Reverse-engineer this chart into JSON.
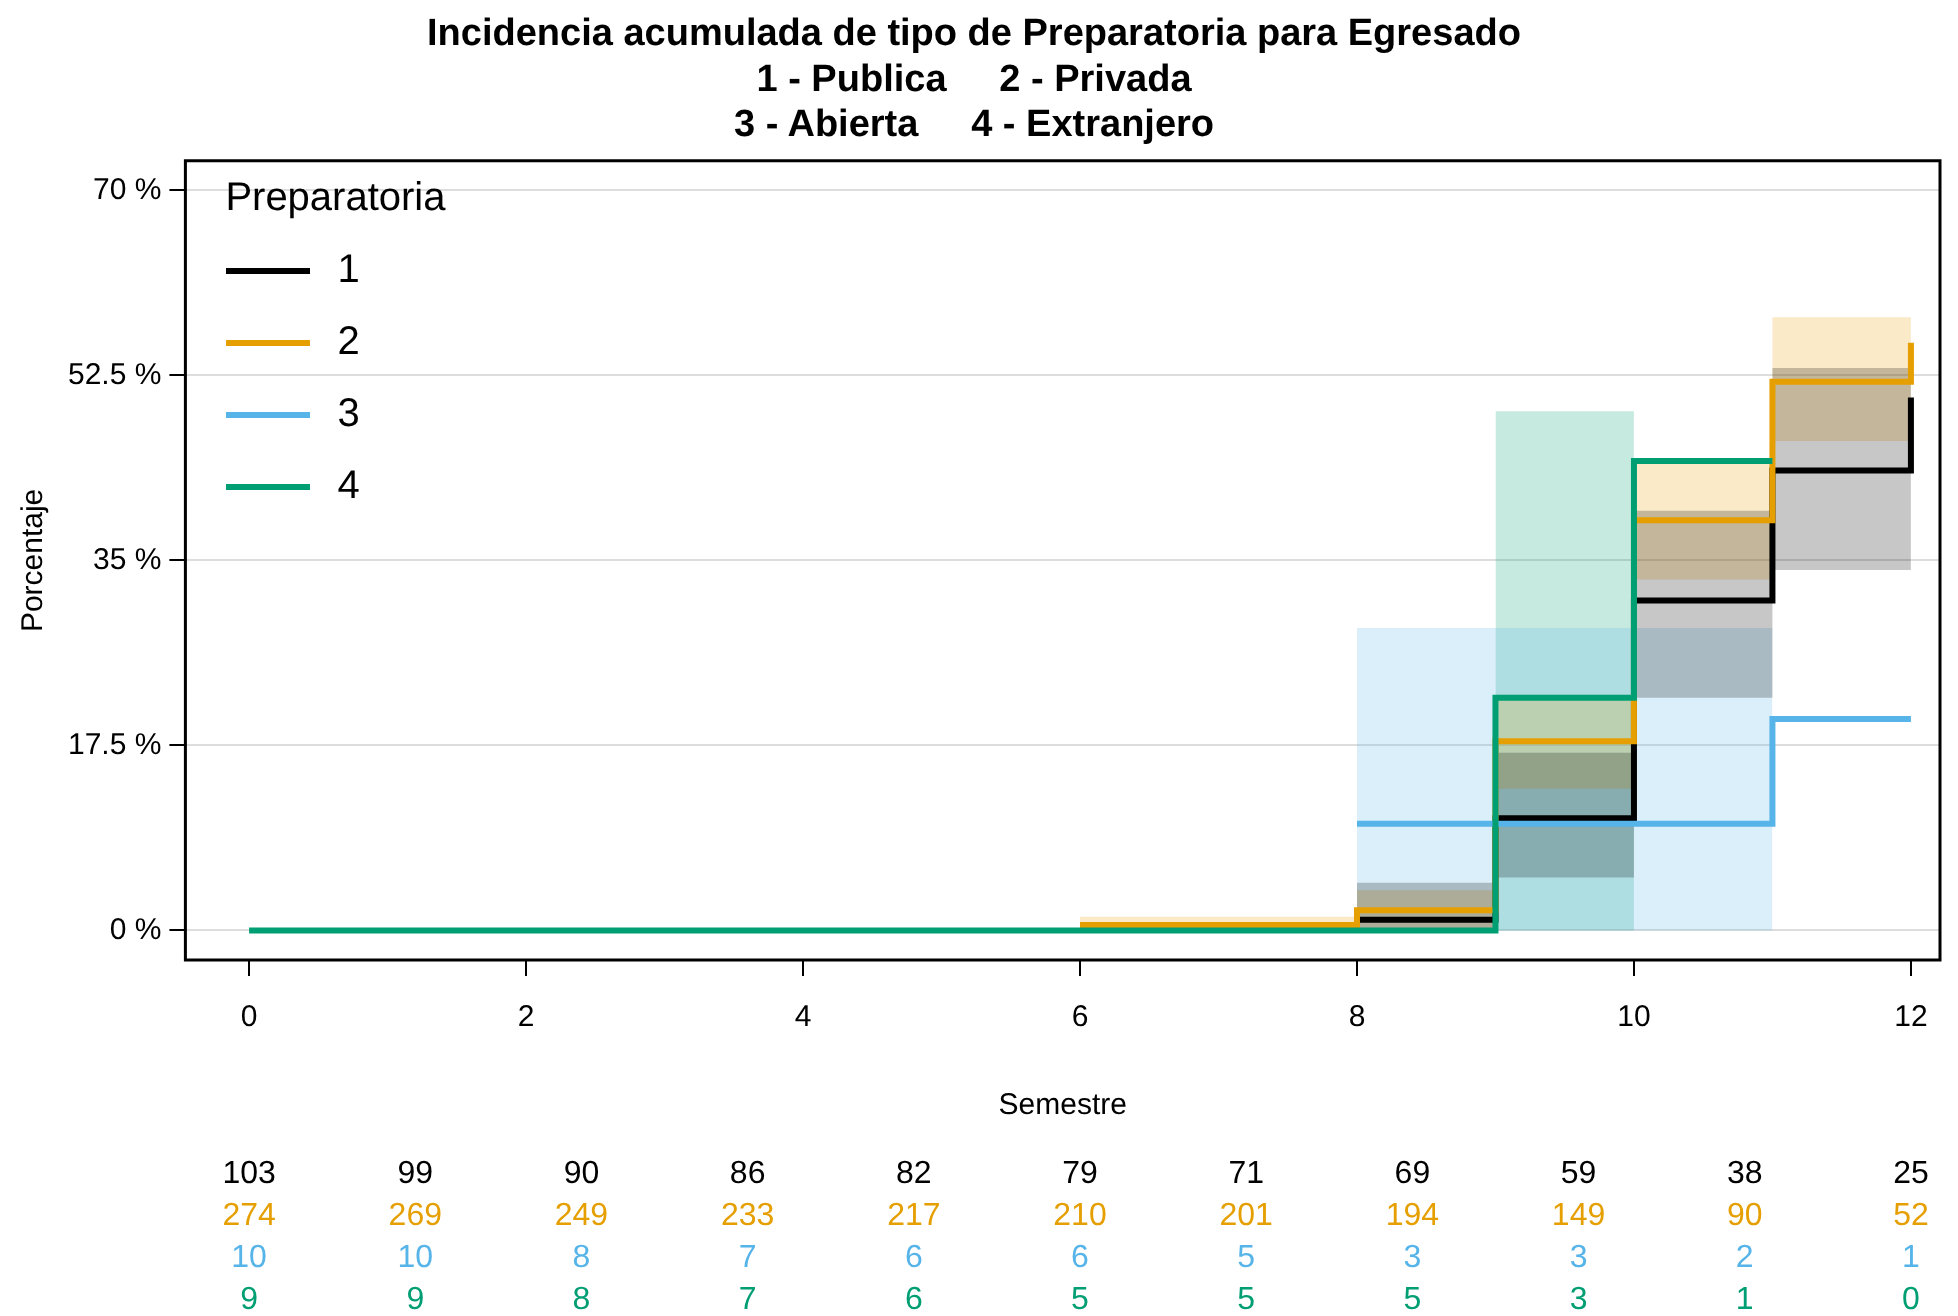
{
  "chart_data": {
    "type": "step",
    "title": "Incidencia acumulada de tipo de Preparatoria para Egresado",
    "subtitle": "1 - Publica     2 - Privada\n3 - Abierta     4 - Extranjero",
    "xlabel": "Semestre",
    "ylabel": "Porcentaje",
    "legend_title": "Preparatoria",
    "xlim": [
      -0.46,
      12.21
    ],
    "xticks": [
      0,
      2,
      4,
      6,
      8,
      10,
      12
    ],
    "ylim": [
      -2.8,
      72.8
    ],
    "yticks": [
      {
        "value": 0,
        "label": "0 %"
      },
      {
        "value": 17.5,
        "label": "17.5 %"
      },
      {
        "value": 35,
        "label": "35 %"
      },
      {
        "value": 52.5,
        "label": "52.5 %"
      },
      {
        "value": 70,
        "label": "70 %"
      }
    ],
    "grid": "y",
    "legend": "top left",
    "series": [
      {
        "name": "1",
        "color": "#000000",
        "x": [
          8,
          9,
          10,
          11,
          12
        ],
        "values": [
          1.0,
          10.6,
          31.2,
          43.5,
          50.4
        ],
        "lower": [
          0,
          5.0,
          22.0,
          34.1,
          34.1
        ],
        "upper": [
          4.5,
          16.8,
          39.7,
          53.2,
          53.2
        ]
      },
      {
        "name": "2",
        "color": "#e69f00",
        "x": [
          6,
          7,
          8,
          9,
          10,
          11,
          12
        ],
        "values": [
          0.5,
          0.5,
          1.9,
          17.9,
          38.8,
          51.9,
          55.6
        ],
        "lower": [
          0,
          0,
          0.2,
          13.4,
          33.2,
          46.3,
          46.3
        ],
        "upper": [
          1.3,
          1.3,
          3.8,
          22.0,
          44.2,
          58.0,
          58.0
        ]
      },
      {
        "name": "3",
        "color": "#56b4e9",
        "x": [
          8,
          9,
          10,
          11,
          12
        ],
        "values": [
          10.1,
          10.1,
          10.1,
          20.0,
          20.0
        ],
        "lower": [
          0,
          0,
          0,
          0,
          null
        ],
        "upper": [
          28.6,
          28.6,
          28.6,
          28.6,
          null
        ]
      },
      {
        "name": "4",
        "color": "#009e73",
        "x": [
          0,
          1,
          2,
          3,
          4,
          5,
          6,
          7,
          8,
          9,
          10,
          11
        ],
        "values": [
          0,
          0,
          0,
          0,
          0,
          0,
          0,
          0,
          0,
          22.0,
          44.4,
          44.4
        ],
        "lower": [
          null,
          null,
          null,
          null,
          null,
          null,
          null,
          null,
          null,
          0,
          0,
          null
        ],
        "upper": [
          null,
          null,
          null,
          null,
          null,
          null,
          null,
          null,
          null,
          49.1,
          49.1,
          null
        ]
      }
    ],
    "annotations": [
      "103",
      "99",
      "90",
      "86",
      "82",
      "79",
      "71",
      "69",
      "59",
      "38",
      "25",
      "274",
      "269",
      "249",
      "233",
      "217",
      "210",
      "201",
      "194",
      "149",
      "90",
      "52",
      "10",
      "10",
      "8",
      "7",
      "6",
      "6",
      "5",
      "3",
      "3",
      "2",
      "1",
      "9",
      "9",
      "8",
      "7",
      "6",
      "5",
      "5",
      "5",
      "3",
      "1",
      "0"
    ]
  }
}
